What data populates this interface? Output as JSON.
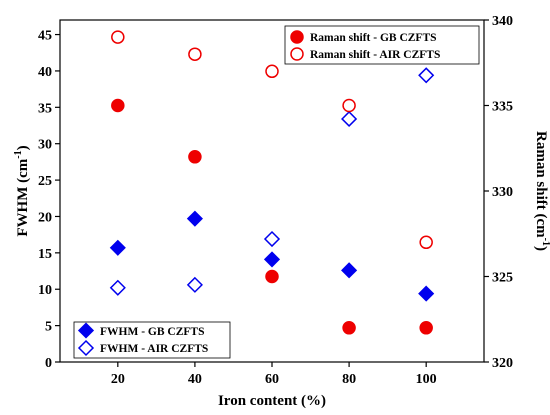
{
  "chart_data": {
    "type": "scatter",
    "x": [
      20,
      40,
      60,
      80,
      100
    ],
    "xlabel": "Iron content (%)",
    "ylabel_left": "FWHM (cm",
    "ylabel_left_sup": "-1",
    "ylabel_left_close": ")",
    "ylabel_right": "Raman shift (cm",
    "ylabel_right_sup": "-1",
    "ylabel_right_close": ")",
    "xlim": [
      5,
      115
    ],
    "ylim_left": [
      0,
      47
    ],
    "ylim_right": [
      320,
      340
    ],
    "x_ticks": [
      20,
      40,
      60,
      80,
      100
    ],
    "y_left_ticks": [
      0,
      5,
      10,
      15,
      20,
      25,
      30,
      35,
      40,
      45
    ],
    "y_right_ticks": [
      320,
      325,
      330,
      335,
      340
    ],
    "series": [
      {
        "name": "FWHM - GB CZFTS",
        "axis": "left",
        "marker": "diamond",
        "filled": true,
        "color": "#0000ee",
        "values": [
          15.7,
          19.7,
          14.1,
          12.6,
          9.4
        ]
      },
      {
        "name": "FWHM - AIR CZFTS",
        "axis": "left",
        "marker": "diamond",
        "filled": false,
        "color": "#0000ee",
        "values": [
          10.2,
          10.6,
          16.9,
          33.4,
          39.4
        ]
      },
      {
        "name": "Raman shift - GB CZFTS",
        "axis": "right",
        "marker": "circle",
        "filled": true,
        "color": "#ee0000",
        "values": [
          335,
          332,
          325,
          322,
          322
        ]
      },
      {
        "name": "Raman shift - AIR CZFTS",
        "axis": "right",
        "marker": "circle",
        "filled": false,
        "color": "#ee0000",
        "values": [
          339,
          338,
          337,
          335,
          327
        ]
      }
    ],
    "legends": {
      "top_right": [
        "Raman shift - GB CZFTS",
        "Raman shift - AIR CZFTS"
      ],
      "bottom_left": [
        "FWHM - GB CZFTS",
        "FWHM - AIR CZFTS"
      ]
    }
  }
}
